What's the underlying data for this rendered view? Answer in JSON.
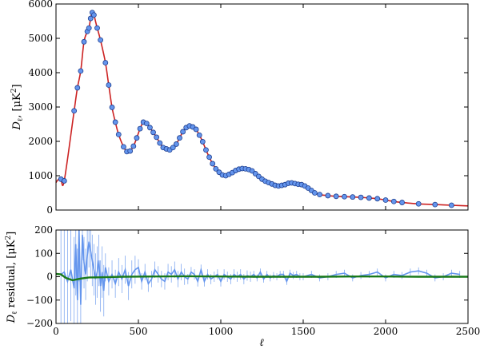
{
  "chart_data": [
    {
      "type": "scatter",
      "ylabel_text": "D",
      "ylabel_sub": "ℓ",
      "ylabel_unit": ", [μK",
      "ylabel_sup": "2",
      "ylabel_close": "]",
      "xlim": [
        0,
        2500
      ],
      "ylim": [
        0,
        6000
      ],
      "yticks": [
        "0",
        "1000",
        "2000",
        "3000",
        "4000",
        "5000",
        "6000"
      ],
      "colors": {
        "points": "#6495ed",
        "points_edge": "#1f3f8f",
        "model": "#cc2222"
      },
      "points": [
        [
          30,
          900
        ],
        [
          50,
          850
        ],
        [
          110,
          2890
        ],
        [
          130,
          3560
        ],
        [
          150,
          4050
        ],
        [
          170,
          4900
        ],
        [
          190,
          5200
        ],
        [
          200,
          5300
        ],
        [
          210,
          5580
        ],
        [
          220,
          5750
        ],
        [
          230,
          5680
        ],
        [
          250,
          5300
        ],
        [
          270,
          4950
        ],
        [
          300,
          4290
        ],
        [
          320,
          3640
        ],
        [
          340,
          2990
        ],
        [
          360,
          2560
        ],
        [
          380,
          2200
        ],
        [
          410,
          1840
        ],
        [
          430,
          1700
        ],
        [
          450,
          1720
        ],
        [
          470,
          1860
        ],
        [
          490,
          2100
        ],
        [
          510,
          2370
        ],
        [
          530,
          2560
        ],
        [
          550,
          2520
        ],
        [
          570,
          2400
        ],
        [
          590,
          2260
        ],
        [
          610,
          2120
        ],
        [
          630,
          1950
        ],
        [
          650,
          1820
        ],
        [
          670,
          1780
        ],
        [
          690,
          1750
        ],
        [
          710,
          1820
        ],
        [
          730,
          1920
        ],
        [
          750,
          2100
        ],
        [
          770,
          2280
        ],
        [
          790,
          2400
        ],
        [
          810,
          2450
        ],
        [
          830,
          2420
        ],
        [
          850,
          2350
        ],
        [
          870,
          2180
        ],
        [
          890,
          1990
        ],
        [
          910,
          1750
        ],
        [
          930,
          1540
        ],
        [
          950,
          1350
        ],
        [
          970,
          1200
        ],
        [
          990,
          1100
        ],
        [
          1010,
          1020
        ],
        [
          1030,
          1000
        ],
        [
          1050,
          1040
        ],
        [
          1070,
          1090
        ],
        [
          1090,
          1150
        ],
        [
          1110,
          1190
        ],
        [
          1130,
          1210
        ],
        [
          1150,
          1200
        ],
        [
          1170,
          1180
        ],
        [
          1190,
          1140
        ],
        [
          1210,
          1060
        ],
        [
          1230,
          980
        ],
        [
          1250,
          900
        ],
        [
          1270,
          840
        ],
        [
          1290,
          800
        ],
        [
          1310,
          760
        ],
        [
          1330,
          720
        ],
        [
          1350,
          700
        ],
        [
          1370,
          720
        ],
        [
          1390,
          740
        ],
        [
          1410,
          780
        ],
        [
          1430,
          790
        ],
        [
          1450,
          770
        ],
        [
          1470,
          750
        ],
        [
          1490,
          740
        ],
        [
          1510,
          700
        ],
        [
          1530,
          640
        ],
        [
          1550,
          570
        ],
        [
          1570,
          500
        ],
        [
          1600,
          450
        ],
        [
          1650,
          420
        ],
        [
          1700,
          400
        ],
        [
          1750,
          390
        ],
        [
          1800,
          380
        ],
        [
          1850,
          370
        ],
        [
          1900,
          350
        ],
        [
          1950,
          330
        ],
        [
          2000,
          290
        ],
        [
          2050,
          250
        ],
        [
          2100,
          220
        ],
        [
          2200,
          180
        ],
        [
          2300,
          160
        ],
        [
          2400,
          140
        ]
      ]
    },
    {
      "type": "line",
      "ylabel_text": "D",
      "ylabel_sub": "ℓ",
      "ylabel_unit": " residual, [μK",
      "ylabel_sup": "2",
      "ylabel_close": "]",
      "xlabel": "ℓ",
      "xlim": [
        0,
        2500
      ],
      "ylim": [
        -200,
        200
      ],
      "xticks": [
        "0",
        "500",
        "1000",
        "1500",
        "2000",
        "2500"
      ],
      "yticks": [
        "−200",
        "−100",
        "0",
        "100",
        "200"
      ],
      "colors": {
        "residual": "#6495ed",
        "smooth": "#1a7a1a"
      },
      "residual_points": [
        [
          30,
          10
        ],
        [
          50,
          20
        ],
        [
          70,
          -20
        ],
        [
          90,
          30
        ],
        [
          110,
          -50
        ],
        [
          120,
          140
        ],
        [
          130,
          -100
        ],
        [
          140,
          200
        ],
        [
          150,
          -120
        ],
        [
          160,
          180
        ],
        [
          170,
          60
        ],
        [
          180,
          10
        ],
        [
          190,
          90
        ],
        [
          200,
          150
        ],
        [
          210,
          110
        ],
        [
          220,
          70
        ],
        [
          230,
          30
        ],
        [
          240,
          -10
        ],
        [
          250,
          20
        ],
        [
          260,
          70
        ],
        [
          270,
          -40
        ],
        [
          280,
          20
        ],
        [
          290,
          -60
        ],
        [
          300,
          40
        ],
        [
          320,
          -20
        ],
        [
          340,
          10
        ],
        [
          360,
          -30
        ],
        [
          380,
          20
        ],
        [
          400,
          -10
        ],
        [
          420,
          30
        ],
        [
          440,
          -40
        ],
        [
          460,
          10
        ],
        [
          480,
          30
        ],
        [
          500,
          40
        ],
        [
          520,
          -20
        ],
        [
          540,
          20
        ],
        [
          560,
          -30
        ],
        [
          580,
          -10
        ],
        [
          600,
          30
        ],
        [
          620,
          10
        ],
        [
          640,
          -10
        ],
        [
          660,
          -20
        ],
        [
          680,
          20
        ],
        [
          700,
          10
        ],
        [
          720,
          30
        ],
        [
          740,
          -10
        ],
        [
          760,
          20
        ],
        [
          780,
          0
        ],
        [
          800,
          -10
        ],
        [
          820,
          20
        ],
        [
          840,
          10
        ],
        [
          860,
          -20
        ],
        [
          880,
          30
        ],
        [
          900,
          -20
        ],
        [
          920,
          10
        ],
        [
          940,
          -10
        ],
        [
          960,
          0
        ],
        [
          980,
          10
        ],
        [
          1000,
          -20
        ],
        [
          1020,
          10
        ],
        [
          1040,
          0
        ],
        [
          1060,
          -10
        ],
        [
          1080,
          10
        ],
        [
          1100,
          0
        ],
        [
          1120,
          10
        ],
        [
          1140,
          -10
        ],
        [
          1160,
          5
        ],
        [
          1180,
          0
        ],
        [
          1200,
          10
        ],
        [
          1220,
          -5
        ],
        [
          1240,
          20
        ],
        [
          1260,
          -10
        ],
        [
          1280,
          10
        ],
        [
          1300,
          -5
        ],
        [
          1320,
          5
        ],
        [
          1340,
          0
        ],
        [
          1360,
          10
        ],
        [
          1380,
          10
        ],
        [
          1400,
          -20
        ],
        [
          1420,
          15
        ],
        [
          1440,
          5
        ],
        [
          1460,
          10
        ],
        [
          1480,
          0
        ],
        [
          1500,
          0
        ],
        [
          1550,
          10
        ],
        [
          1600,
          -5
        ],
        [
          1650,
          0
        ],
        [
          1700,
          10
        ],
        [
          1750,
          15
        ],
        [
          1800,
          -5
        ],
        [
          1850,
          5
        ],
        [
          1900,
          10
        ],
        [
          1950,
          20
        ],
        [
          2000,
          -5
        ],
        [
          2050,
          10
        ],
        [
          2100,
          5
        ],
        [
          2150,
          20
        ],
        [
          2200,
          25
        ],
        [
          2250,
          15
        ],
        [
          2300,
          -5
        ],
        [
          2350,
          0
        ],
        [
          2400,
          15
        ],
        [
          2450,
          10
        ]
      ],
      "smooth_points": [
        [
          0,
          12
        ],
        [
          30,
          10
        ],
        [
          60,
          -5
        ],
        [
          100,
          -15
        ],
        [
          150,
          -8
        ],
        [
          200,
          -3
        ],
        [
          300,
          -2
        ],
        [
          400,
          0
        ],
        [
          600,
          1
        ],
        [
          800,
          2
        ],
        [
          1000,
          1
        ],
        [
          1200,
          0
        ],
        [
          1400,
          0
        ],
        [
          1600,
          0
        ],
        [
          1800,
          1
        ],
        [
          2000,
          1
        ],
        [
          2200,
          0
        ],
        [
          2400,
          0
        ],
        [
          2500,
          0
        ]
      ]
    }
  ]
}
